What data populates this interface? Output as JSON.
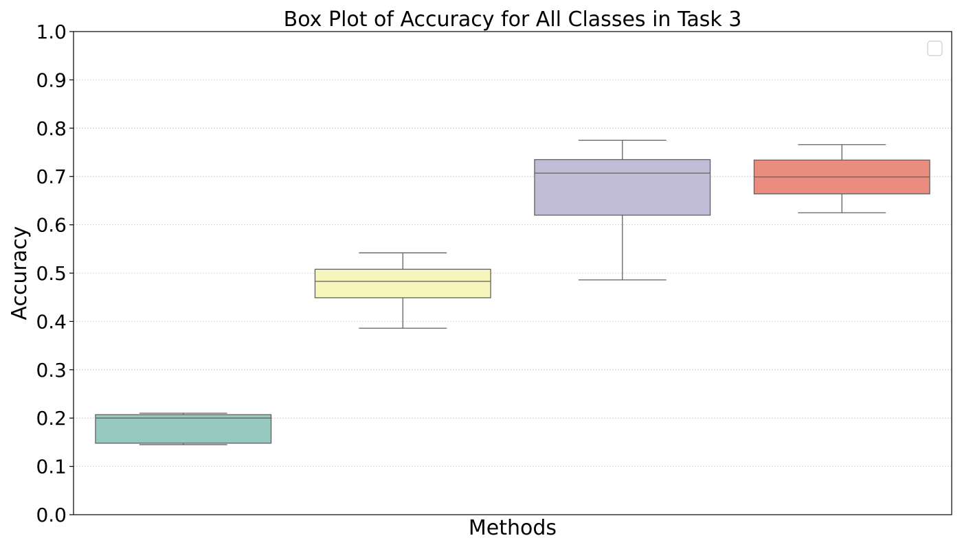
{
  "chart_data": {
    "type": "box",
    "title": "Box Plot of Accuracy for All Classes in Task 3",
    "xlabel": "Methods",
    "ylabel": "Accuracy",
    "ylim": [
      0.0,
      1.0
    ],
    "yticks": [
      "0.0",
      "0.1",
      "0.2",
      "0.3",
      "0.4",
      "0.5",
      "0.6",
      "0.7",
      "0.8",
      "0.9",
      "1.0"
    ],
    "grid": "horizontal dotted",
    "legend": "top-right (empty)",
    "boxes": [
      {
        "color": "#96c9bf",
        "whisker_low": 0.145,
        "q1": 0.148,
        "median": 0.2,
        "q3": 0.207,
        "whisker_high": 0.21
      },
      {
        "color": "#f6f5bc",
        "whisker_low": 0.386,
        "q1": 0.449,
        "median": 0.483,
        "q3": 0.508,
        "whisker_high": 0.542
      },
      {
        "color": "#c1bdd6",
        "whisker_low": 0.486,
        "q1": 0.62,
        "median": 0.707,
        "q3": 0.735,
        "whisker_high": 0.775
      },
      {
        "color": "#ea8c80",
        "whisker_low": 0.625,
        "q1": 0.664,
        "median": 0.699,
        "q3": 0.734,
        "whisker_high": 0.766
      }
    ]
  }
}
